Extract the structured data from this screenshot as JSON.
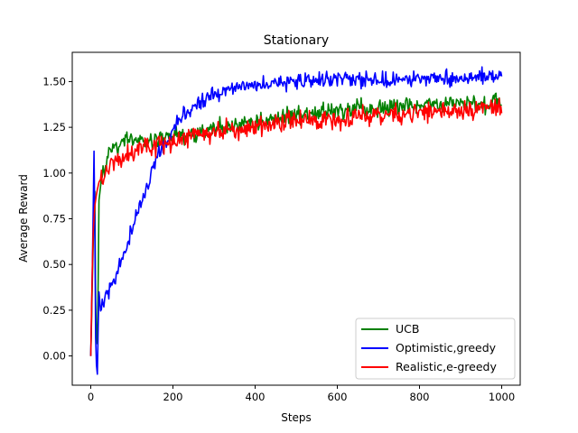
{
  "chart_data": {
    "type": "line",
    "title": "Stationary",
    "xlabel": "Steps",
    "ylabel": "Average Reward",
    "xlim": [
      -45,
      1045
    ],
    "ylim": [
      -0.16,
      1.66
    ],
    "xticks": [
      0,
      200,
      400,
      600,
      800,
      1000
    ],
    "yticks": [
      0.0,
      0.25,
      0.5,
      0.75,
      1.0,
      1.25,
      1.5
    ],
    "ytick_labels": [
      "0.00",
      "0.25",
      "0.50",
      "0.75",
      "1.00",
      "1.25",
      "1.50"
    ],
    "grid": false,
    "legend_position": "lower-right",
    "series": [
      {
        "name": "UCB",
        "color": "#008000",
        "x": [
          0,
          3,
          5,
          8,
          10,
          12,
          15,
          18,
          20,
          25,
          30,
          40,
          50,
          60,
          80,
          100,
          120,
          150,
          175,
          200,
          250,
          300,
          350,
          400,
          450,
          500,
          600,
          700,
          800,
          900,
          1000
        ],
        "values": [
          0.0,
          0.3,
          0.55,
          0.75,
          0.9,
          0.3,
          -0.05,
          0.4,
          0.85,
          0.95,
          1.0,
          1.08,
          1.12,
          1.14,
          1.17,
          1.19,
          1.17,
          1.17,
          1.19,
          1.2,
          1.21,
          1.24,
          1.26,
          1.28,
          1.3,
          1.32,
          1.34,
          1.35,
          1.37,
          1.38,
          1.39
        ],
        "noise": 0.025
      },
      {
        "name": "Optimistic,greedy",
        "color": "#0000ff",
        "x": [
          0,
          3,
          6,
          8,
          10,
          12,
          14,
          16,
          18,
          20,
          25,
          30,
          40,
          50,
          60,
          80,
          100,
          120,
          140,
          160,
          180,
          200,
          220,
          250,
          300,
          350,
          400,
          450,
          500,
          600,
          700,
          800,
          900,
          1000
        ],
        "values": [
          0.0,
          0.35,
          0.8,
          1.12,
          0.7,
          0.1,
          -0.05,
          -0.1,
          0.15,
          0.35,
          0.22,
          0.3,
          0.33,
          0.38,
          0.42,
          0.55,
          0.68,
          0.82,
          0.95,
          1.07,
          1.15,
          1.23,
          1.3,
          1.36,
          1.43,
          1.46,
          1.48,
          1.49,
          1.5,
          1.51,
          1.51,
          1.52,
          1.52,
          1.53
        ],
        "noise": 0.022
      },
      {
        "name": "Realistic,e-greedy",
        "color": "#ff0000",
        "x": [
          0,
          3,
          6,
          10,
          15,
          20,
          30,
          40,
          50,
          70,
          100,
          150,
          200,
          250,
          300,
          400,
          500,
          600,
          700,
          800,
          900,
          1000
        ],
        "values": [
          0.0,
          0.4,
          0.68,
          0.82,
          0.9,
          0.95,
          0.99,
          1.02,
          1.05,
          1.08,
          1.11,
          1.15,
          1.18,
          1.2,
          1.22,
          1.25,
          1.28,
          1.3,
          1.32,
          1.33,
          1.35,
          1.36
        ],
        "noise": 0.028
      }
    ]
  }
}
